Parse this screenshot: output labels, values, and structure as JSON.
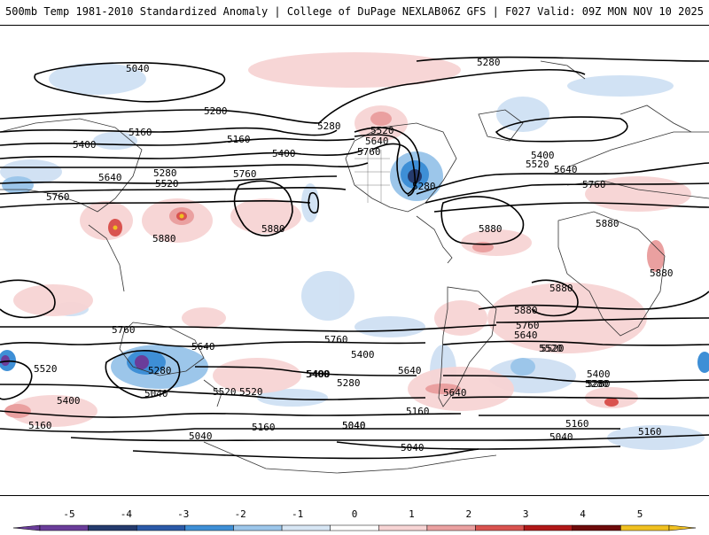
{
  "header": {
    "title": "500mb Temp 1981-2010 Standardized Anomaly | College of DuPage NEXLAB",
    "run_info": "06Z GFS | F027 Valid: 09Z MON NOV 10 2025"
  },
  "map": {
    "contour_labels": [
      {
        "id": "c5040-a",
        "text": "5040"
      },
      {
        "id": "c5280-a",
        "text": "5280"
      },
      {
        "id": "c5280-b",
        "text": "5280"
      },
      {
        "id": "c5160-a",
        "text": "5160"
      },
      {
        "id": "c5160-b",
        "text": "5160"
      },
      {
        "id": "c5280-c",
        "text": "5280"
      },
      {
        "id": "c5520-a",
        "text": "5520"
      },
      {
        "id": "c5640-a",
        "text": "5640"
      },
      {
        "id": "c5760-a",
        "text": "5760"
      },
      {
        "id": "c5400-a",
        "text": "5400"
      },
      {
        "id": "c5400-b",
        "text": "5400"
      },
      {
        "id": "c5280-d",
        "text": "5280"
      },
      {
        "id": "c5640-b",
        "text": "5640"
      },
      {
        "id": "c5520-b",
        "text": "5520"
      },
      {
        "id": "c5760-b",
        "text": "5760"
      },
      {
        "id": "c5400-c",
        "text": "5400"
      },
      {
        "id": "c5520-c",
        "text": "5520"
      },
      {
        "id": "c5640-c",
        "text": "5640"
      },
      {
        "id": "c5760-c",
        "text": "5760"
      },
      {
        "id": "c5880-a",
        "text": "5880"
      },
      {
        "id": "c5760-d",
        "text": "5760"
      },
      {
        "id": "c5880-b",
        "text": "5880"
      },
      {
        "id": "c5880-c",
        "text": "5880"
      },
      {
        "id": "c5880-d",
        "text": "5880"
      },
      {
        "id": "c5880-e",
        "text": "5880"
      },
      {
        "id": "c5880-f",
        "text": "5880"
      },
      {
        "id": "c5880-g",
        "text": "5880"
      },
      {
        "id": "c5760-e",
        "text": "5760"
      },
      {
        "id": "c5640-d",
        "text": "5640"
      },
      {
        "id": "c5520-d",
        "text": "5520"
      },
      {
        "id": "c5400-d",
        "text": "5400"
      },
      {
        "id": "c5280-e",
        "text": "5280"
      },
      {
        "id": "c5040-b",
        "text": "5040"
      },
      {
        "id": "c5160-c",
        "text": "5160"
      },
      {
        "id": "c5040-c",
        "text": "5040"
      },
      {
        "id": "c5760-f",
        "text": "5760"
      },
      {
        "id": "c5640-e",
        "text": "5640"
      },
      {
        "id": "c5760-g",
        "text": "5760"
      },
      {
        "id": "c5640-f",
        "text": "5640"
      },
      {
        "id": "c5400-e",
        "text": "5400"
      },
      {
        "id": "c5280-f",
        "text": "5280"
      },
      {
        "id": "c5520-e",
        "text": "5520"
      },
      {
        "id": "c5640-g",
        "text": "5640"
      },
      {
        "id": "c5160-d",
        "text": "5160"
      },
      {
        "id": "c5040-d",
        "text": "5040"
      },
      {
        "id": "c5160-e",
        "text": "5160"
      },
      {
        "id": "c5040-e",
        "text": "5040"
      },
      {
        "id": "c5520-f",
        "text": "5520"
      },
      {
        "id": "c5280-g",
        "text": "5280"
      },
      {
        "id": "c5040-f",
        "text": "5040"
      },
      {
        "id": "c5400-f",
        "text": "5400"
      },
      {
        "id": "c5520-g",
        "text": "5520"
      },
      {
        "id": "c5400-g",
        "text": "5400"
      },
      {
        "id": "c5160-f",
        "text": "5160"
      },
      {
        "id": "c5280-h",
        "text": "5280"
      },
      {
        "id": "c5160-g",
        "text": "5160"
      },
      {
        "id": "c5520-h",
        "text": "5520"
      },
      {
        "id": "c5400-h",
        "text": "5400"
      },
      {
        "id": "c5280-i",
        "text": "5280"
      },
      {
        "id": "c5040-g",
        "text": "5040"
      }
    ]
  },
  "colorbar": {
    "ticks": [
      "-5",
      "-4",
      "-3",
      "-2",
      "-1",
      "0",
      "1",
      "2",
      "3",
      "4",
      "5"
    ],
    "colors": [
      "#6a3d9a",
      "#253b6e",
      "#2b5aa8",
      "#3e8fd6",
      "#9cc6ea",
      "#d7e6f4",
      "#ffffff",
      "#f7d4d4",
      "#eaa0a0",
      "#d9534f",
      "#b01818",
      "#6e0b0b",
      "#f0c020"
    ],
    "arrow_low": "#6a3d9a",
    "arrow_high": "#f0c020"
  }
}
